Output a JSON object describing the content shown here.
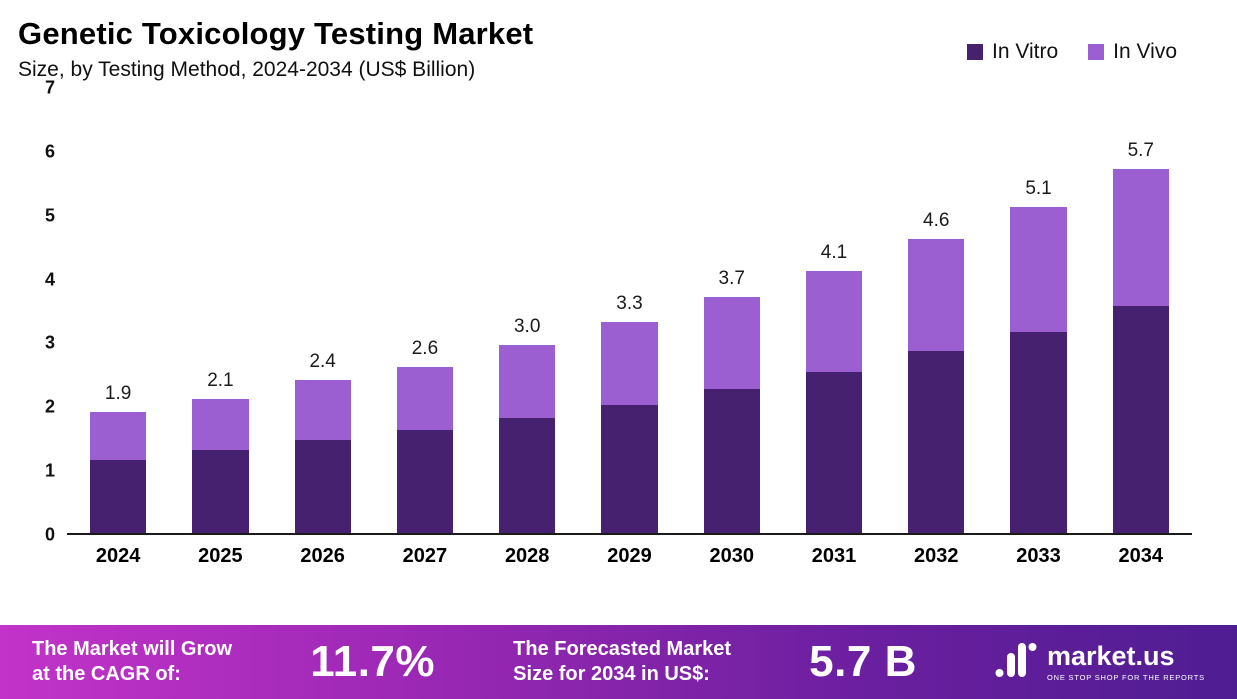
{
  "header": {
    "title": "Genetic Toxicology Testing Market",
    "subtitle": "Size, by Testing Method, 2024-2034 (US$ Billion)"
  },
  "legend": [
    {
      "label": "In Vitro",
      "color": "#45216f"
    },
    {
      "label": "In Vivo",
      "color": "#9b5fd2"
    }
  ],
  "chart_data": {
    "type": "bar",
    "stacked": true,
    "title": "Genetic Toxicology Testing Market",
    "subtitle": "Size, by Testing Method, 2024-2034 (US$ Billion)",
    "categories": [
      "2024",
      "2025",
      "2026",
      "2027",
      "2028",
      "2029",
      "2030",
      "2031",
      "2032",
      "2033",
      "2034"
    ],
    "series": [
      {
        "name": "In Vitro",
        "color": "#45216f",
        "values": [
          1.15,
          1.3,
          1.45,
          1.62,
          1.8,
          2.0,
          2.25,
          2.52,
          2.85,
          3.15,
          3.55
        ]
      },
      {
        "name": "In Vivo",
        "color": "#9b5fd2",
        "values": [
          0.75,
          0.8,
          0.95,
          0.98,
          1.15,
          1.3,
          1.45,
          1.58,
          1.75,
          1.95,
          2.15
        ]
      }
    ],
    "totals": [
      1.9,
      2.1,
      2.4,
      2.6,
      3.0,
      3.3,
      3.7,
      4.1,
      4.6,
      5.1,
      5.7
    ],
    "totals_labels": [
      "1.9",
      "2.1",
      "2.4",
      "2.6",
      "3.0",
      "3.3",
      "3.7",
      "4.1",
      "4.6",
      "5.1",
      "5.7"
    ],
    "xlabel": "",
    "ylabel": "",
    "ylim": [
      0,
      7
    ],
    "yticks": [
      0,
      1,
      2,
      3,
      4,
      5,
      6,
      7
    ],
    "grid": false,
    "legend_position": "top-right"
  },
  "footer": {
    "cagr_label": "The Market will Grow\nat the CAGR of:",
    "cagr_value": "11.7%",
    "forecast_label": "The Forecasted Market\nSize for 2034 in US$:",
    "forecast_value": "5.7 B",
    "brand": "market.us",
    "brand_tagline": "ONE STOP SHOP FOR THE REPORTS"
  }
}
